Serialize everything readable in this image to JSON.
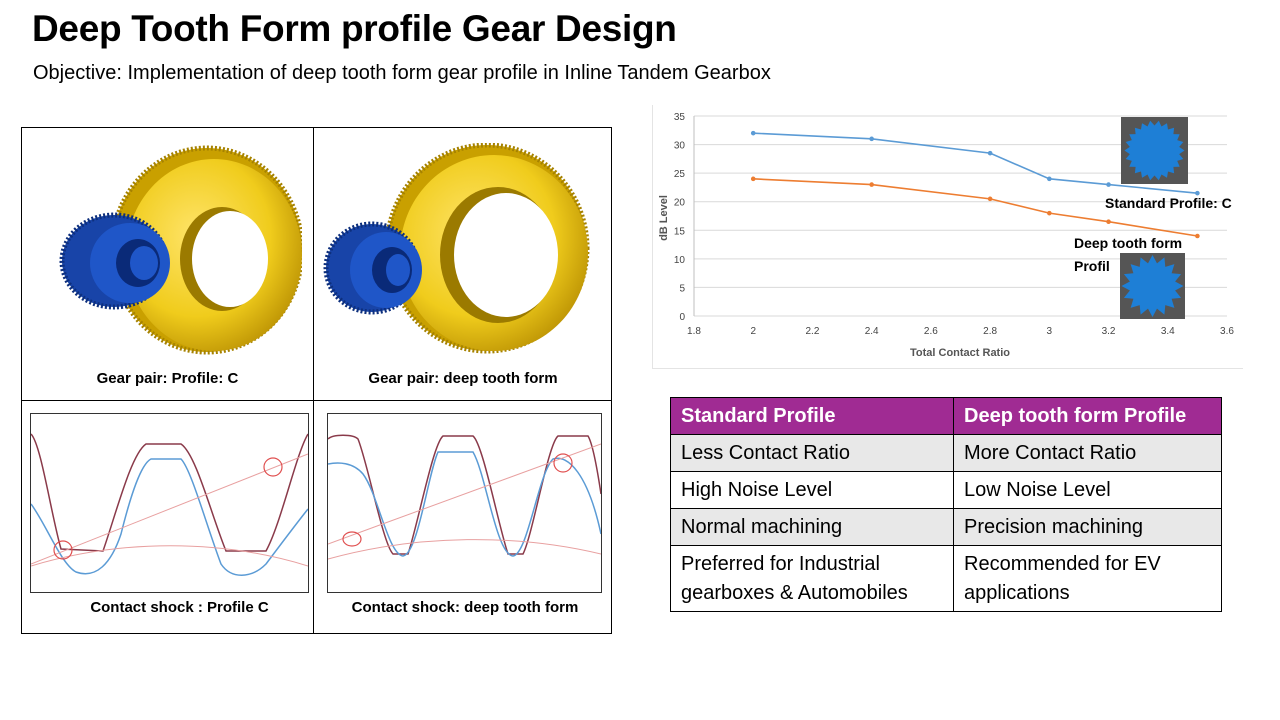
{
  "slide": {
    "title": "Deep Tooth Form profile Gear Design",
    "subtitle": "Objective: Implementation of  deep tooth form gear profile in Inline Tandem Gearbox"
  },
  "images": {
    "gear_pair_c_caption": "Gear pair: Profile: C",
    "gear_pair_deep_caption": "Gear pair: deep tooth form",
    "shock_c_caption": "Contact shock : Profile C",
    "shock_deep_caption": "Contact shock: deep tooth form"
  },
  "chart_data": {
    "type": "line",
    "xlabel": "Total Contact Ratio",
    "ylabel": "dB Level",
    "xlim": [
      1.8,
      3.6
    ],
    "ylim": [
      0,
      35
    ],
    "xticks": [
      "1.8",
      "2",
      "2.2",
      "2.4",
      "2.6",
      "2.8",
      "3",
      "3.2",
      "3.4",
      "3.6"
    ],
    "yticks": [
      "0",
      "5",
      "10",
      "15",
      "20",
      "25",
      "30",
      "35"
    ],
    "grid": "horizontal",
    "series": [
      {
        "name": "Standard Profile: C",
        "color": "#5b9bd5",
        "x": [
          2,
          2.4,
          2.8,
          3,
          3.2,
          3.5
        ],
        "y": [
          32,
          31,
          28.5,
          24,
          23,
          21.5
        ]
      },
      {
        "name": "Deep tooth form Profile",
        "color": "#ed7d31",
        "x": [
          2,
          2.4,
          2.8,
          3,
          3.2,
          3.5
        ],
        "y": [
          24,
          23,
          20.5,
          18,
          16.5,
          14
        ]
      }
    ],
    "annotations": [
      "Standard Profile: C",
      "Deep tooth form",
      "Profil"
    ]
  },
  "table": {
    "headers": [
      "Standard Profile",
      "Deep tooth form Profile"
    ],
    "rows": [
      [
        "Less Contact Ratio",
        "More Contact Ratio"
      ],
      [
        "High Noise Level",
        "Low Noise Level"
      ],
      [
        "Normal machining",
        "Precision machining"
      ],
      [
        "Preferred for Industrial gearboxes & Automobiles",
        "Recommended for EV applications"
      ]
    ]
  },
  "colors": {
    "header_purple": "#a02b93",
    "gear_yellow": "#f0cc1c",
    "gear_blue": "#1f56c8",
    "series_blue": "#5b9bd5",
    "series_orange": "#ed7d31"
  }
}
